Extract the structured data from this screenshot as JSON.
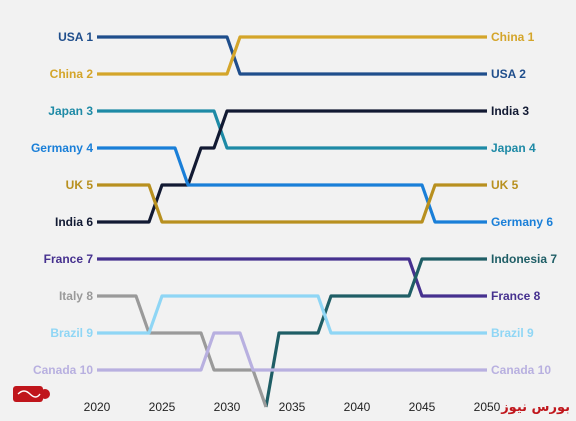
{
  "chart_data": {
    "type": "line",
    "subtype": "bump",
    "x": [
      2020,
      2025,
      2030,
      2035,
      2040,
      2045,
      2050
    ],
    "tick_labels": [
      "2020",
      "2025",
      "2030",
      "2035",
      "2040",
      "2045",
      "2050"
    ],
    "grid": false,
    "legend": "none",
    "series": [
      {
        "name": "USA",
        "color": "#1f4e8c",
        "left_label": "USA 1",
        "right_label": "USA 2",
        "points": [
          [
            2020,
            1
          ],
          [
            2030,
            1
          ],
          [
            2031,
            2
          ],
          [
            2050,
            2
          ]
        ]
      },
      {
        "name": "China",
        "color": "#d4a52a",
        "left_label": "China 2",
        "right_label": "China 1",
        "points": [
          [
            2020,
            2
          ],
          [
            2030,
            2
          ],
          [
            2031,
            1
          ],
          [
            2050,
            1
          ]
        ]
      },
      {
        "name": "Japan",
        "color": "#1e8aa6",
        "left_label": "Japan 3",
        "right_label": "Japan 4",
        "points": [
          [
            2020,
            3
          ],
          [
            2029,
            3
          ],
          [
            2030,
            4
          ],
          [
            2050,
            4
          ]
        ]
      },
      {
        "name": "India",
        "color": "#121a33",
        "left_label": "India 6",
        "right_label": "India 3",
        "points": [
          [
            2020,
            6
          ],
          [
            2024,
            6
          ],
          [
            2025,
            5
          ],
          [
            2027,
            5
          ],
          [
            2028,
            4
          ],
          [
            2029,
            4
          ],
          [
            2030,
            3
          ],
          [
            2050,
            3
          ]
        ]
      },
      {
        "name": "Germany",
        "color": "#1a7fd8",
        "left_label": "Germany 4",
        "right_label": "Germany 6",
        "points": [
          [
            2020,
            4
          ],
          [
            2026,
            4
          ],
          [
            2027,
            5
          ],
          [
            2045,
            5
          ],
          [
            2046,
            6
          ],
          [
            2050,
            6
          ]
        ]
      },
      {
        "name": "UK",
        "color": "#b8901f",
        "left_label": "UK 5",
        "right_label": "UK 5",
        "points": [
          [
            2020,
            5
          ],
          [
            2024,
            5
          ],
          [
            2025,
            6
          ],
          [
            2045,
            6
          ],
          [
            2046,
            5
          ],
          [
            2050,
            5
          ]
        ]
      },
      {
        "name": "France",
        "color": "#46318f",
        "left_label": "France 7",
        "right_label": "France 8",
        "points": [
          [
            2020,
            7
          ],
          [
            2044,
            7
          ],
          [
            2045,
            8
          ],
          [
            2050,
            8
          ]
        ]
      },
      {
        "name": "Indonesia",
        "color": "#1f5e66",
        "left_label": "",
        "right_label": "Indonesia 7",
        "points": [
          [
            2033,
            11
          ],
          [
            2034,
            9
          ],
          [
            2037,
            9
          ],
          [
            2038,
            8
          ],
          [
            2044,
            8
          ],
          [
            2045,
            7
          ],
          [
            2050,
            7
          ]
        ]
      },
      {
        "name": "Italy",
        "color": "#9a9a9a",
        "left_label": "Italy 8",
        "right_label": "",
        "points": [
          [
            2020,
            8
          ],
          [
            2023,
            8
          ],
          [
            2024,
            9
          ],
          [
            2028,
            9
          ],
          [
            2029,
            10
          ],
          [
            2032,
            10
          ],
          [
            2033,
            11
          ]
        ]
      },
      {
        "name": "Brazil",
        "color": "#8fd6f5",
        "left_label": "Brazil 9",
        "right_label": "Brazil 9",
        "points": [
          [
            2020,
            9
          ],
          [
            2024,
            9
          ],
          [
            2025,
            8
          ],
          [
            2037,
            8
          ],
          [
            2038,
            9
          ],
          [
            2050,
            9
          ]
        ]
      },
      {
        "name": "Canada",
        "color": "#b8b0e0",
        "left_label": "Canada 10",
        "right_label": "Canada 10",
        "points": [
          [
            2020,
            10
          ],
          [
            2028,
            10
          ],
          [
            2029,
            9
          ],
          [
            2031,
            9
          ],
          [
            2032,
            10
          ],
          [
            2050,
            10
          ]
        ]
      }
    ]
  },
  "branding": {
    "watermark": "بورس نیوز"
  }
}
